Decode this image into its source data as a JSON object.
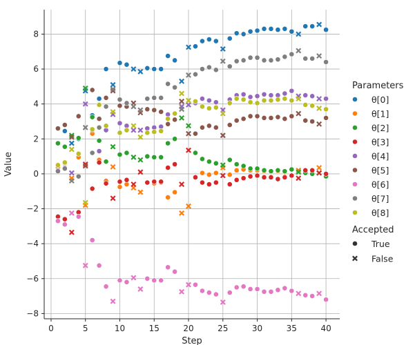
{
  "chart_data": {
    "type": "scatter",
    "xlabel": "Step",
    "ylabel": "Value",
    "xlim": [
      -1,
      42
    ],
    "ylim": [
      -8.3,
      9.4
    ],
    "xticks": [
      0,
      5,
      10,
      15,
      20,
      25,
      30,
      35,
      40
    ],
    "yticks": [
      -8,
      -6,
      -4,
      -2,
      0,
      2,
      4,
      6,
      8
    ],
    "grid": true,
    "legend": {
      "title": "Parameters",
      "placement": "right",
      "style_title": "Accepted",
      "styles": [
        {
          "label": "True",
          "marker": "circle"
        },
        {
          "label": "False",
          "marker": "x"
        }
      ]
    },
    "x": [
      1,
      2,
      3,
      4,
      5,
      6,
      7,
      8,
      9,
      10,
      11,
      12,
      13,
      14,
      15,
      16,
      17,
      18,
      19,
      20,
      21,
      22,
      23,
      24,
      25,
      26,
      27,
      28,
      29,
      30,
      31,
      32,
      33,
      34,
      35,
      36,
      37,
      38,
      39,
      40
    ],
    "accepted": [
      true,
      true,
      false,
      true,
      false,
      true,
      true,
      true,
      false,
      true,
      true,
      false,
      false,
      true,
      true,
      true,
      true,
      true,
      false,
      false,
      true,
      true,
      true,
      true,
      false,
      true,
      true,
      true,
      true,
      true,
      true,
      true,
      true,
      true,
      true,
      false,
      true,
      true,
      false,
      true
    ],
    "series": [
      {
        "name": "θ[0]",
        "color": "#1f77b4",
        "values": [
          0.2,
          2.45,
          1.75,
          2.0,
          4.75,
          3.35,
          4.3,
          6.0,
          5.1,
          6.35,
          6.25,
          6.0,
          5.85,
          6.05,
          6.0,
          6.0,
          6.75,
          6.5,
          5.3,
          7.25,
          7.3,
          7.6,
          7.7,
          7.6,
          7.15,
          7.75,
          8.05,
          8.0,
          8.15,
          8.2,
          8.3,
          8.3,
          8.25,
          8.3,
          8.15,
          8.0,
          8.45,
          8.45,
          8.55,
          8.25
        ]
      },
      {
        "name": "θ[1]",
        "color": "#ff7f0e",
        "values": [
          0.35,
          0.6,
          -0.25,
          0.95,
          -1.8,
          2.3,
          0.8,
          -0.4,
          0.4,
          -0.75,
          -0.6,
          -0.8,
          -1.05,
          -0.5,
          -0.55,
          -0.5,
          -1.35,
          -1.05,
          -2.25,
          -1.85,
          -0.2,
          0.05,
          -0.05,
          0.05,
          0.35,
          -0.05,
          0.2,
          0.25,
          0.2,
          0.2,
          0.15,
          0.15,
          0.15,
          0.1,
          0.25,
          0.2,
          0.2,
          0.2,
          0.35,
          -0.05
        ]
      },
      {
        "name": "θ[2]",
        "color": "#2ca02c",
        "values": [
          1.75,
          1.55,
          2.2,
          2.05,
          4.9,
          3.25,
          1.9,
          0.7,
          1.55,
          1.1,
          1.2,
          0.95,
          0.8,
          1.0,
          0.95,
          0.95,
          1.75,
          2.0,
          3.2,
          2.75,
          1.2,
          0.85,
          0.7,
          0.6,
          0.5,
          0.8,
          0.55,
          0.45,
          0.3,
          0.3,
          0.2,
          0.15,
          0.2,
          0.15,
          0.25,
          0.1,
          0.05,
          0.0,
          0.05,
          -0.15
        ]
      },
      {
        "name": "θ[3]",
        "color": "#d62728",
        "values": [
          -2.45,
          -2.6,
          -3.35,
          -2.2,
          0.55,
          -0.85,
          0.65,
          -0.55,
          -1.4,
          -0.45,
          -0.35,
          -0.6,
          0.1,
          -0.5,
          -0.45,
          -0.45,
          0.35,
          0.55,
          -0.6,
          1.35,
          -0.2,
          -0.5,
          -0.6,
          -0.5,
          -0.1,
          -0.6,
          -0.35,
          -0.25,
          -0.15,
          -0.1,
          -0.2,
          -0.2,
          -0.3,
          -0.2,
          -0.1,
          -0.25,
          0.2,
          0.2,
          0.05,
          0.0
        ]
      },
      {
        "name": "θ[4]",
        "color": "#9467bd",
        "values": [
          0.2,
          0.35,
          0.05,
          -0.15,
          4.0,
          2.5,
          1.3,
          2.5,
          3.4,
          2.9,
          2.75,
          2.5,
          2.5,
          2.6,
          2.65,
          2.7,
          3.4,
          3.45,
          3.85,
          3.95,
          4.05,
          4.3,
          4.2,
          4.1,
          3.65,
          4.25,
          4.5,
          4.55,
          4.4,
          4.45,
          4.55,
          4.5,
          4.5,
          4.6,
          4.75,
          4.45,
          4.5,
          4.45,
          4.3,
          4.3
        ]
      },
      {
        "name": "θ[5]",
        "color": "#8c564b",
        "values": [
          2.6,
          2.8,
          2.1,
          3.3,
          0.45,
          4.8,
          3.15,
          4.35,
          4.75,
          3.9,
          3.85,
          4.05,
          3.5,
          3.7,
          3.65,
          3.55,
          2.85,
          3.1,
          4.15,
          2.3,
          2.3,
          2.65,
          2.75,
          2.65,
          2.2,
          2.8,
          3.05,
          3.15,
          3.3,
          3.3,
          3.2,
          3.2,
          3.25,
          3.15,
          3.3,
          3.45,
          3.05,
          3.0,
          2.85,
          3.2
        ]
      },
      {
        "name": "θ[6]",
        "color": "#e377c2",
        "values": [
          -2.7,
          -2.9,
          -2.25,
          -2.45,
          -5.25,
          -3.8,
          -5.25,
          -6.45,
          -7.3,
          -6.1,
          -6.2,
          -5.95,
          -6.6,
          -6.0,
          -6.1,
          -6.1,
          -5.35,
          -5.6,
          -6.75,
          -6.35,
          -6.35,
          -6.7,
          -6.8,
          -6.9,
          -7.35,
          -6.8,
          -6.5,
          -6.45,
          -6.6,
          -6.6,
          -6.75,
          -6.75,
          -6.65,
          -6.55,
          -6.7,
          -6.85,
          -6.95,
          -7.0,
          -6.85,
          -7.2
        ]
      },
      {
        "name": "θ[7]",
        "color": "#7f7f7f",
        "values": [
          0.15,
          0.3,
          -0.4,
          -0.15,
          2.65,
          1.2,
          2.65,
          3.85,
          4.85,
          4.25,
          4.05,
          3.85,
          3.65,
          4.3,
          4.35,
          4.35,
          5.15,
          4.95,
          3.7,
          5.65,
          5.7,
          6.0,
          6.1,
          5.95,
          6.45,
          6.15,
          6.45,
          6.5,
          6.65,
          6.65,
          6.5,
          6.5,
          6.55,
          6.7,
          6.85,
          7.05,
          6.6,
          6.6,
          6.75,
          6.4
        ]
      },
      {
        "name": "θ[8]",
        "color": "#bcbd22",
        "values": [
          0.5,
          0.65,
          1.4,
          1.15,
          -1.65,
          2.55,
          3.95,
          2.75,
          3.55,
          2.35,
          2.5,
          2.75,
          2.1,
          2.35,
          2.4,
          2.45,
          3.15,
          3.45,
          4.6,
          4.2,
          4.15,
          3.85,
          3.75,
          3.8,
          3.45,
          4.05,
          4.3,
          4.25,
          4.1,
          4.05,
          4.2,
          4.2,
          4.25,
          4.3,
          4.2,
          4.3,
          3.95,
          3.9,
          3.75,
          3.7
        ]
      }
    ]
  }
}
